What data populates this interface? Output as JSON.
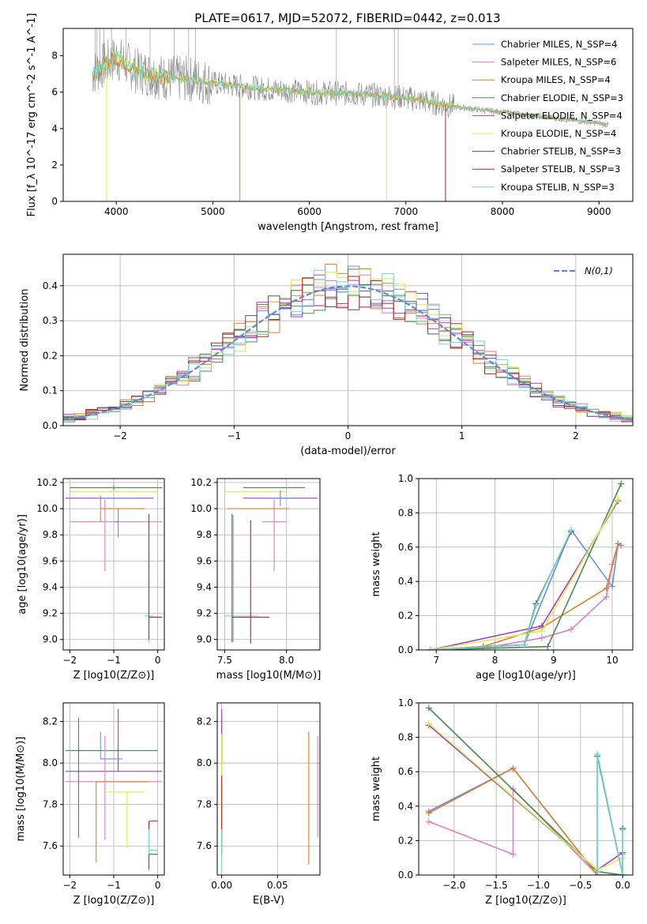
{
  "figure": {
    "title": "PLATE=0617, MJD=52072, FIBERID=0442, z=0.013"
  },
  "palette": {
    "chab_miles": "#6a8fd8",
    "salp_miles": "#e07cc4",
    "krou_miles": "#d98030",
    "chab_elod": "#4a8a50",
    "salp_elod": "#a040c0",
    "krou_elod": "#dcec50",
    "chab_stel": "#555555",
    "salp_stel": "#c02020",
    "krou_stel": "#70d4d4",
    "observed": "#888888",
    "gaussian": "#5b8bd4"
  },
  "chart_data": [
    {
      "id": "spectrum",
      "type": "line",
      "title": "PLATE=0617, MJD=52072, FIBERID=0442, z=0.013",
      "xlabel": "wavelength [Angstrom, rest frame]",
      "ylabel": "Flux [f_λ 10^-17 erg cm^-2 s^-1 A^-1]",
      "xlim": [
        3450,
        9350
      ],
      "ylim": [
        0,
        9.5
      ],
      "xticks": [
        4000,
        5000,
        6000,
        7000,
        8000,
        9000
      ],
      "yticks": [
        0,
        2,
        4,
        6,
        8
      ],
      "grid": false,
      "legend_position": "top-right",
      "continuum": {
        "x": [
          3750,
          3900,
          4000,
          4200,
          4500,
          4800,
          5000,
          5500,
          6000,
          6500,
          7000,
          7500,
          8000,
          8500,
          9000,
          9100
        ],
        "y": [
          7.0,
          7.6,
          7.9,
          7.2,
          6.8,
          6.7,
          6.5,
          6.2,
          6.0,
          5.9,
          5.7,
          5.2,
          4.9,
          4.6,
          4.3,
          4.2
        ]
      },
      "series": [
        {
          "name": "Chabrier MILES, N_SSP=4",
          "color_key": "chab_miles"
        },
        {
          "name": "Salpeter MILES, N_SSP=6",
          "color_key": "salp_miles"
        },
        {
          "name": "Kroupa MILES, N_SSP=4",
          "color_key": "krou_miles"
        },
        {
          "name": "Chabrier ELODIE, N_SSP=3",
          "color_key": "chab_elod"
        },
        {
          "name": "Salpeter ELODIE, N_SSP=4",
          "color_key": "salp_elod"
        },
        {
          "name": "Kroupa ELODIE, N_SSP=4",
          "color_key": "krou_elod"
        },
        {
          "name": "Chabrier STELIB, N_SSP=3",
          "color_key": "chab_stel"
        },
        {
          "name": "Salpeter STELIB, N_SSP=3",
          "color_key": "salp_stel"
        },
        {
          "name": "Kroupa STELIB, N_SSP=3",
          "color_key": "krou_stel"
        }
      ],
      "dips": [
        {
          "x": 3900,
          "color_key": "krou_elod"
        },
        {
          "x": 5280,
          "color_key": "krou_miles"
        },
        {
          "x": 6800,
          "color_key": "krou_elod"
        },
        {
          "x": 7410,
          "color_key": "salp_stel"
        }
      ]
    },
    {
      "id": "residuals",
      "type": "line",
      "xlabel": "(data-model)/error",
      "ylabel": "Normed distribution",
      "xlim": [
        -2.5,
        2.5
      ],
      "ylim": [
        0,
        0.49
      ],
      "xticks": [
        -2,
        -1,
        0,
        1,
        2
      ],
      "yticks": [
        0.0,
        0.1,
        0.2,
        0.3,
        0.4
      ],
      "grid": true,
      "legend": [
        {
          "name": "N(0,1)",
          "style": "dashed"
        }
      ],
      "legend_position": "top-right",
      "histogram_bin_width": 0.1,
      "series_color_keys": [
        "chab_miles",
        "salp_miles",
        "krou_miles",
        "chab_elod",
        "salp_elod",
        "krou_elod",
        "chab_stel",
        "salp_stel",
        "krou_stel"
      ],
      "gaussian": {
        "mean": 0,
        "sigma": 1
      }
    },
    {
      "id": "age_vs_Z",
      "type": "scatter",
      "xlabel": "Z [log10(Z/Z⊙)]",
      "ylabel": "age  [log10(age/yr)]",
      "xlim": [
        -2.15,
        0.15
      ],
      "ylim": [
        8.92,
        10.23
      ],
      "xticks": [
        -2,
        -1,
        0
      ],
      "yticks": [
        9.0,
        9.2,
        9.4,
        9.6,
        9.8,
        10.0,
        10.2
      ],
      "grid": true,
      "errorbars": [
        {
          "x": -1.0,
          "y": 10.16,
          "xerr": [
            1.0,
            1.1
          ],
          "yerr": [
            0.02,
            0.02
          ],
          "color_key": "chab_elod"
        },
        {
          "x": -1.0,
          "y": 10.08,
          "xerr": [
            1.1,
            0.9
          ],
          "yerr": [
            0.0,
            0.0
          ],
          "color_key": "salp_elod"
        },
        {
          "x": -1.1,
          "y": 10.13,
          "xerr": [
            0.9,
            1.1
          ],
          "yerr": [
            0.0,
            0.0
          ],
          "color_key": "krou_elod"
        },
        {
          "x": -1.2,
          "y": 10.08,
          "xerr": [
            0.2,
            0.8
          ],
          "yerr": [
            0.0,
            0.0
          ],
          "color_key": "chab_miles"
        },
        {
          "x": -1.2,
          "y": 9.9,
          "xerr": [
            0.8,
            1.3
          ],
          "yerr": [
            0.38,
            0.17
          ],
          "color_key": "salp_miles"
        },
        {
          "x": -1.3,
          "y": 10.0,
          "xerr": [
            0.0,
            1.0
          ],
          "yerr": [
            0.1,
            0.1
          ],
          "color_key": "krou_miles"
        },
        {
          "x": -0.9,
          "y": 9.9,
          "xerr": [
            0.1,
            0.0
          ],
          "yerr": [
            0.12,
            0.1
          ],
          "color_key": "chab_miles"
        },
        {
          "x": -0.2,
          "y": 9.18,
          "xerr": [
            0.1,
            0.1
          ],
          "yerr": [
            0.2,
            0.77
          ],
          "color_key": "krou_stel"
        },
        {
          "x": -0.2,
          "y": 9.17,
          "xerr": [
            0.0,
            0.3
          ],
          "yerr": [
            0.0,
            0.0
          ],
          "color_key": "salp_stel"
        },
        {
          "x": -0.2,
          "y": 9.1,
          "xerr": [
            0.0,
            0.0
          ],
          "yerr": [
            0.1,
            0.86
          ],
          "color_key": "chab_stel"
        }
      ]
    },
    {
      "id": "age_vs_mass",
      "type": "scatter",
      "xlabel": "mass [log10(M/M⊙)]",
      "xlim": [
        7.44,
        8.27
      ],
      "ylim": [
        8.92,
        10.23
      ],
      "xticks": [
        7.5,
        8.0
      ],
      "yticks": [
        9.0,
        9.2,
        9.4,
        9.6,
        9.8,
        10.0,
        10.2
      ],
      "grid": true,
      "errorbars": [
        {
          "x": 7.9,
          "y": 10.16,
          "xerr": [
            0.25,
            0.25
          ],
          "yerr": [
            0.0,
            0.0
          ],
          "color_key": "chab_elod"
        },
        {
          "x": 7.95,
          "y": 10.08,
          "xerr": [
            0.3,
            0.3
          ],
          "yerr": [
            0.0,
            0.0
          ],
          "color_key": "salp_elod"
        },
        {
          "x": 7.85,
          "y": 10.13,
          "xerr": [
            0.35,
            0.15
          ],
          "yerr": [
            0.0,
            0.0
          ],
          "color_key": "krou_elod"
        },
        {
          "x": 7.95,
          "y": 10.08,
          "xerr": [
            0.1,
            0.1
          ],
          "yerr": [
            0.06,
            0.06
          ],
          "color_key": "chab_miles"
        },
        {
          "x": 7.9,
          "y": 9.9,
          "xerr": [
            0.1,
            0.1
          ],
          "yerr": [
            0.38,
            0.17
          ],
          "color_key": "salp_miles"
        },
        {
          "x": 7.72,
          "y": 10.0,
          "xerr": [
            0.2,
            0.3
          ],
          "yerr": [
            0.0,
            0.0
          ],
          "color_key": "krou_miles"
        },
        {
          "x": 7.57,
          "y": 9.18,
          "xerr": [
            0.07,
            0.2
          ],
          "yerr": [
            0.2,
            0.77
          ],
          "color_key": "krou_stel"
        },
        {
          "x": 7.71,
          "y": 9.17,
          "xerr": [
            0.15,
            0.15
          ],
          "yerr": [
            0.2,
            0.74
          ],
          "color_key": "salp_stel"
        },
        {
          "x": 7.56,
          "y": 9.18,
          "xerr": [
            0.0,
            0.0
          ],
          "yerr": [
            0.2,
            0.78
          ],
          "color_key": "chab_stel"
        }
      ]
    },
    {
      "id": "weight_vs_age",
      "type": "line",
      "xlabel": "age  [log10(age/yr)]",
      "ylabel": "mass weight",
      "xlim": [
        6.7,
        10.35
      ],
      "ylim": [
        0,
        1.0
      ],
      "xticks": [
        7,
        8,
        9,
        10
      ],
      "yticks": [
        0.0,
        0.2,
        0.4,
        0.6,
        0.8,
        1.0
      ],
      "grid": true,
      "series": [
        {
          "color_key": "chab_miles",
          "x": [
            6.9,
            7.8,
            8.5,
            9.3,
            10.0,
            10.1,
            10.15
          ],
          "y": [
            0.0,
            0.02,
            0.03,
            0.7,
            0.37,
            0.62,
            0.61
          ]
        },
        {
          "color_key": "salp_miles",
          "x": [
            6.9,
            7.8,
            8.8,
            9.3,
            9.9,
            10.0,
            10.1
          ],
          "y": [
            0.0,
            0.01,
            0.07,
            0.12,
            0.31,
            0.5,
            0.62
          ]
        },
        {
          "color_key": "krou_miles",
          "x": [
            6.9,
            7.8,
            8.8,
            9.9,
            10.1
          ],
          "y": [
            0.0,
            0.02,
            0.13,
            0.36,
            0.62
          ]
        },
        {
          "color_key": "chab_elod",
          "x": [
            6.9,
            8.9,
            10.15
          ],
          "y": [
            0.0,
            0.02,
            0.97
          ]
        },
        {
          "color_key": "salp_elod",
          "x": [
            6.9,
            8.8,
            10.1
          ],
          "y": [
            0.0,
            0.14,
            0.87
          ]
        },
        {
          "color_key": "krou_elod",
          "x": [
            6.9,
            8.8,
            10.1
          ],
          "y": [
            0.0,
            0.11,
            0.88
          ]
        },
        {
          "color_key": "chab_stel",
          "x": [
            6.9,
            8.5,
            8.7,
            9.3
          ],
          "y": [
            0.0,
            0.03,
            0.27,
            0.69
          ]
        },
        {
          "color_key": "krou_stel",
          "x": [
            6.9,
            8.5,
            8.7,
            9.3
          ],
          "y": [
            0.0,
            0.03,
            0.26,
            0.7
          ]
        }
      ]
    },
    {
      "id": "mass_vs_Z",
      "type": "scatter",
      "xlabel": "Z [log10(Z/Z⊙)]",
      "ylabel": "mass [log10(M/M⊙)]",
      "xlim": [
        -2.15,
        0.15
      ],
      "ylim": [
        7.46,
        8.29
      ],
      "xticks": [
        -2,
        -1,
        0
      ],
      "yticks": [
        7.6,
        7.8,
        8.0,
        8.2
      ],
      "grid": true,
      "errorbars": [
        {
          "x": -1.8,
          "y": 8.06,
          "xerr": [
            0.3,
            1.8
          ],
          "yerr": [
            0.42,
            0.16
          ],
          "color_key": "chab_elod"
        },
        {
          "x": -0.9,
          "y": 7.96,
          "xerr": [
            1.2,
            1.0
          ],
          "yerr": [
            0.0,
            0.3
          ],
          "color_key": "salp_elod"
        },
        {
          "x": -1.2,
          "y": 7.91,
          "xerr": [
            0.9,
            1.3
          ],
          "yerr": [
            0.28,
            0.22
          ],
          "color_key": "salp_miles"
        },
        {
          "x": -1.3,
          "y": 8.02,
          "xerr": [
            0.0,
            0.5
          ],
          "yerr": [
            0.0,
            0.13
          ],
          "color_key": "chab_miles"
        },
        {
          "x": -1.4,
          "y": 7.91,
          "xerr": [
            0.0,
            1.2
          ],
          "yerr": [
            0.39,
            0.0
          ],
          "color_key": "krou_miles"
        },
        {
          "x": -0.7,
          "y": 7.86,
          "xerr": [
            0.5,
            0.4
          ],
          "yerr": [
            0.27,
            0.0
          ],
          "color_key": "krou_elod"
        },
        {
          "x": -0.2,
          "y": 7.72,
          "xerr": [
            0.0,
            0.2
          ],
          "yerr": [
            0.16,
            0.0
          ],
          "color_key": "salp_stel"
        },
        {
          "x": -0.2,
          "y": 7.58,
          "xerr": [
            0.0,
            0.2
          ],
          "yerr": [
            0.1,
            0.1
          ],
          "color_key": "krou_stel"
        },
        {
          "x": -0.2,
          "y": 7.56,
          "xerr": [
            0.0,
            0.2
          ],
          "yerr": [
            0.07,
            0.0
          ],
          "color_key": "chab_stel"
        }
      ]
    },
    {
      "id": "mass_vs_ebv",
      "type": "scatter",
      "xlabel": "E(B-V)",
      "xlim": [
        -0.004,
        0.088
      ],
      "ylim": [
        7.46,
        8.29
      ],
      "xticks": [
        0.0,
        0.05
      ],
      "yticks": [
        7.6,
        7.8,
        8.0,
        8.2
      ],
      "grid": true,
      "errorbars": [
        {
          "x": 0.0,
          "y": 8.06,
          "xerr": [
            0,
            0
          ],
          "yerr": [
            0.42,
            0.16
          ],
          "color_key": "chab_elod"
        },
        {
          "x": 0.0,
          "y": 8.0,
          "xerr": [
            0,
            0
          ],
          "yerr": [
            0.0,
            0.26
          ],
          "color_key": "salp_elod"
        },
        {
          "x": 0.0,
          "y": 7.86,
          "xerr": [
            0,
            0
          ],
          "yerr": [
            0.27,
            0.28
          ],
          "color_key": "krou_elod"
        },
        {
          "x": 0.0,
          "y": 7.72,
          "xerr": [
            0,
            0
          ],
          "yerr": [
            0.16,
            0.22
          ],
          "color_key": "salp_stel"
        },
        {
          "x": 0.0,
          "y": 7.58,
          "xerr": [
            0,
            0
          ],
          "yerr": [
            0.1,
            0.1
          ],
          "color_key": "krou_stel"
        },
        {
          "x": 0.078,
          "y": 7.9,
          "xerr": [
            0,
            0
          ],
          "yerr": [
            0.39,
            0.25
          ],
          "color_key": "krou_miles"
        },
        {
          "x": 0.086,
          "y": 7.9,
          "xerr": [
            0,
            0
          ],
          "yerr": [
            0.26,
            0.23
          ],
          "color_key": "salp_miles"
        }
      ]
    },
    {
      "id": "weight_vs_Z",
      "type": "line",
      "xlabel": "Z [log10(Z/Z⊙)]",
      "ylabel": "mass weight",
      "xlim": [
        -2.42,
        0.12
      ],
      "ylim": [
        0,
        1.0
      ],
      "xticks": [
        -2.0,
        -1.5,
        -1.0,
        -0.5,
        0.0
      ],
      "yticks": [
        0.0,
        0.2,
        0.4,
        0.6,
        0.8,
        1.0
      ],
      "grid": true,
      "series": [
        {
          "color_key": "chab_miles",
          "x": [
            -2.3,
            -1.3,
            -0.3,
            -0.3,
            0.0,
            0.0
          ],
          "y": [
            0.37,
            0.62,
            0.0,
            0.7,
            0.0,
            0.27
          ]
        },
        {
          "color_key": "salp_miles",
          "x": [
            -2.3,
            -1.3,
            -1.3,
            -0.3,
            0.0,
            0.0
          ],
          "y": [
            0.31,
            0.12,
            0.5,
            0.0,
            0.0,
            0.12
          ]
        },
        {
          "color_key": "krou_miles",
          "x": [
            -2.3,
            -1.3,
            -0.3,
            0.0
          ],
          "y": [
            0.36,
            0.62,
            0.0,
            0.0
          ]
        },
        {
          "color_key": "chab_elod",
          "x": [
            -2.3,
            -0.3,
            0.0
          ],
          "y": [
            0.97,
            0.02,
            0.0
          ]
        },
        {
          "color_key": "salp_elod",
          "x": [
            -2.3,
            -0.3,
            0.0
          ],
          "y": [
            0.87,
            0.03,
            0.13
          ]
        },
        {
          "color_key": "krou_elod",
          "x": [
            -2.3,
            -0.3,
            0.0
          ],
          "y": [
            0.88,
            0.03,
            0.1
          ]
        },
        {
          "color_key": "chab_stel",
          "x": [
            -0.3,
            -0.3,
            0.0,
            0.0
          ],
          "y": [
            0.02,
            0.69,
            0.0,
            0.27
          ]
        },
        {
          "color_key": "krou_stel",
          "x": [
            -0.3,
            -0.3,
            0.0,
            0.0
          ],
          "y": [
            0.02,
            0.7,
            0.0,
            0.26
          ]
        }
      ]
    }
  ]
}
